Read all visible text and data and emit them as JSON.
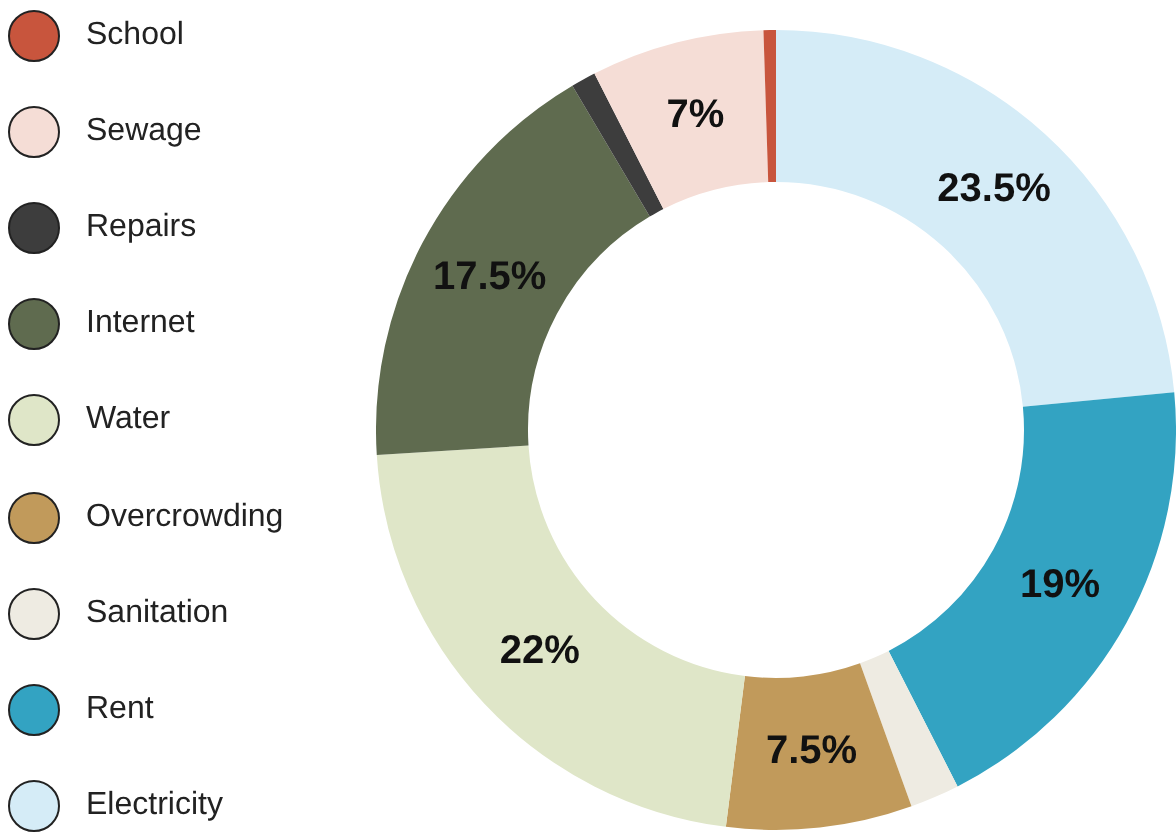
{
  "chart_data": {
    "type": "donut",
    "categories": [
      "School",
      "Sewage",
      "Repairs",
      "Internet",
      "Water",
      "Overcrowding",
      "Sanitation",
      "Rent",
      "Electricity"
    ],
    "values": [
      0.5,
      7,
      1,
      17.5,
      22,
      7.5,
      2,
      19,
      23.5
    ],
    "colors": [
      "#c8553d",
      "#f5ddd6",
      "#3d3d3d",
      "#5f6b4f",
      "#dfe6c8",
      "#c19a5b",
      "#eeebe2",
      "#33a3c2",
      "#d5ecf7"
    ],
    "value_labels": [
      null,
      "7%",
      null,
      "17.5%",
      "22%",
      "7.5%",
      null,
      "19%",
      "23.5%"
    ],
    "legend": "left"
  }
}
